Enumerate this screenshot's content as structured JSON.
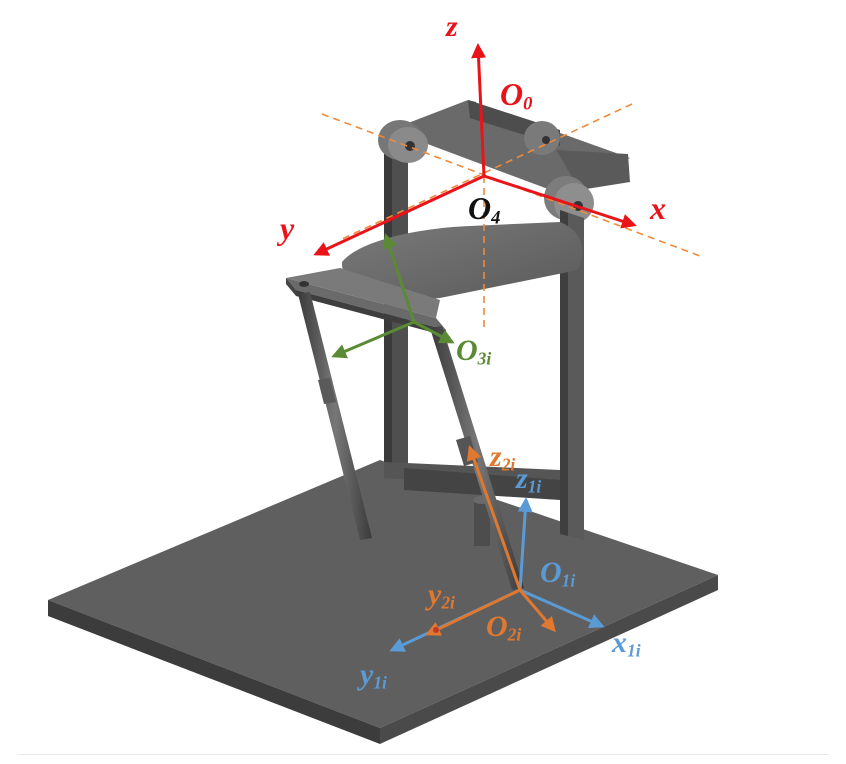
{
  "colors": {
    "frame_axes": "#e8141a",
    "axis_guides": "#ee8a3c",
    "platform_frame": "#5b8a35",
    "base_frame": "#5b9bd5",
    "leg_frame": "#e07830",
    "metal_dark": "#4a4a4a",
    "metal_mid": "#6e6e6e",
    "metal_light": "#8c8c8c"
  },
  "labels": {
    "z": "z",
    "x": "x",
    "y": "y",
    "O0": {
      "main": "O",
      "sub": "0"
    },
    "O4": {
      "main": "O",
      "sub": "4"
    },
    "O3i": {
      "main": "O",
      "sub": "3i"
    },
    "z2i": {
      "main": "z",
      "sub": "2i"
    },
    "z1i": {
      "main": "z",
      "sub": "1i"
    },
    "O1i": {
      "main": "O",
      "sub": "1i"
    },
    "y2i": {
      "main": "y",
      "sub": "2i"
    },
    "O2i": {
      "main": "O",
      "sub": "2i"
    },
    "x1i": {
      "main": "x",
      "sub": "1i"
    },
    "y1i": {
      "main": "y",
      "sub": "1i"
    }
  }
}
